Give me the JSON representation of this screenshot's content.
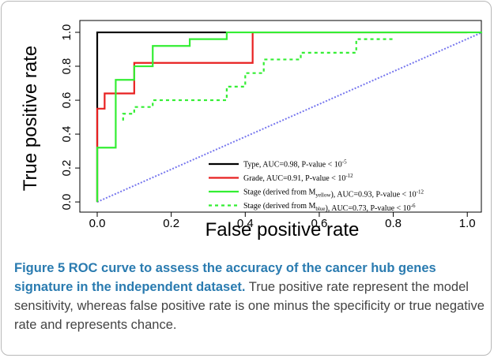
{
  "chart_data": {
    "type": "line",
    "xlabel": "False positive rate",
    "ylabel": "True positive rate",
    "xlim": [
      -0.047,
      1.038
    ],
    "ylim": [
      -0.06,
      1.07
    ],
    "xticks": [
      {
        "value": 0,
        "label": "0.0"
      },
      0.2,
      0.4,
      0.6,
      0.8,
      {
        "value": 1,
        "label": "1.0"
      }
    ],
    "yticks": [
      {
        "value": 0,
        "label": "0.0"
      },
      0.2,
      0.4,
      0.6,
      0.8,
      {
        "value": 1,
        "label": "1.0"
      }
    ],
    "series": [
      {
        "name": [
          {
            "t": "Type, AUC=0.98, P-value < 10"
          },
          {
            "sup": "-5"
          }
        ],
        "color": "#000000",
        "dash": false,
        "x": [
          0,
          0,
          0.35
        ],
        "values": [
          0,
          1,
          1
        ]
      },
      {
        "name": [
          {
            "t": "Grade, AUC=0.91, P-value < 10"
          },
          {
            "sup": "-12"
          }
        ],
        "color": "#e82020",
        "dash": false,
        "x": [
          0,
          0,
          0.02,
          0.02,
          0.1,
          0.1,
          0.42,
          0.42,
          1.0
        ],
        "values": [
          0,
          0.55,
          0.55,
          0.64,
          0.64,
          0.82,
          0.82,
          1,
          1
        ]
      },
      {
        "name": [
          {
            "t": "Stage (derived from M"
          },
          {
            "sub": "yellow"
          },
          {
            "t": "), AUC=0.93, P-value < 10"
          },
          {
            "sup": "-12"
          }
        ],
        "color": "#33ee33",
        "dash": false,
        "x": [
          0,
          0,
          0.05,
          0.05,
          0.1,
          0.1,
          0.15,
          0.15,
          0.25,
          0.25,
          0.35,
          0.35,
          1.04
        ],
        "values": [
          0,
          0.32,
          0.32,
          0.72,
          0.72,
          0.8,
          0.8,
          0.92,
          0.92,
          0.96,
          0.96,
          1,
          1
        ]
      },
      {
        "name": [
          {
            "t": "Stage (derived from M"
          },
          {
            "sub": "blue"
          },
          {
            "t": "), AUC=0.73, P-value < 10"
          },
          {
            "sup": "-6"
          }
        ],
        "color": "#33ee33",
        "dash": true,
        "x": [
          0.07,
          0.07,
          0.1,
          0.1,
          0.15,
          0.15,
          0.35,
          0.35,
          0.4,
          0.4,
          0.45,
          0.45,
          0.55,
          0.55,
          0.7,
          0.7,
          0.8
        ],
        "values": [
          0.48,
          0.52,
          0.52,
          0.56,
          0.56,
          0.6,
          0.6,
          0.68,
          0.68,
          0.76,
          0.76,
          0.84,
          0.84,
          0.88,
          0.88,
          0.96,
          0.96
        ]
      }
    ],
    "diagonal": {
      "color": "#7777ee",
      "x": [
        0,
        1.04
      ],
      "values": [
        0,
        1
      ]
    }
  },
  "caption": {
    "label": "Figure 5",
    "title": " ROC curve to assess the accuracy of the cancer hub genes signature in the independent dataset.",
    "text": " True positive rate represent the model sensitivity, whereas false positive rate is one minus the specificity or true negative rate and represents chance."
  }
}
